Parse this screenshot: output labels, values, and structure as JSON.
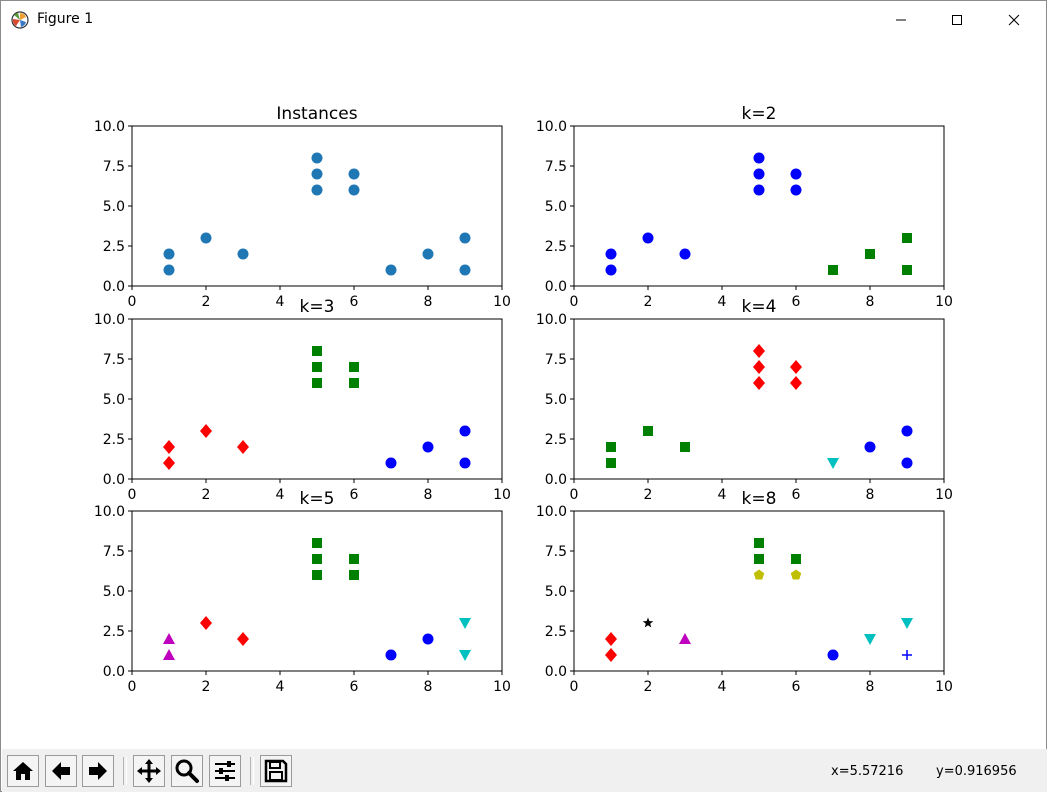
{
  "window": {
    "title": "Figure 1",
    "controls": [
      "minimize",
      "maximize",
      "close"
    ]
  },
  "toolbar": {
    "buttons": [
      {
        "name": "home-button",
        "icon": "home-icon"
      },
      {
        "name": "back-button",
        "icon": "arrow-left-icon"
      },
      {
        "name": "forward-button",
        "icon": "arrow-right-icon"
      },
      {
        "name": "pan-button",
        "icon": "move-icon"
      },
      {
        "name": "zoom-button",
        "icon": "magnifier-icon"
      },
      {
        "name": "configure-subplots-button",
        "icon": "sliders-icon"
      },
      {
        "name": "save-button",
        "icon": "floppy-disk-icon"
      }
    ],
    "coords": {
      "x": "x=5.57216",
      "y": "y=0.916956"
    }
  },
  "chart_data": [
    {
      "type": "scatter",
      "title": "Instances",
      "xlim": [
        0,
        10
      ],
      "ylim": [
        0,
        10
      ],
      "xticks": [
        "0",
        "2",
        "4",
        "6",
        "8",
        "10"
      ],
      "yticks": [
        "0.0",
        "2.5",
        "5.0",
        "7.5",
        "10.0"
      ],
      "series": [
        {
          "marker": "circle",
          "color": "#1f77b4",
          "points": [
            [
              1,
              2
            ],
            [
              1,
              1
            ],
            [
              2,
              3
            ],
            [
              3,
              2
            ],
            [
              5,
              8
            ],
            [
              5,
              7
            ],
            [
              5,
              6
            ],
            [
              6,
              7
            ],
            [
              6,
              6
            ],
            [
              7,
              1
            ],
            [
              8,
              2
            ],
            [
              9,
              1
            ],
            [
              9,
              3
            ]
          ]
        }
      ]
    },
    {
      "type": "scatter",
      "title": "k=2",
      "xlim": [
        0,
        10
      ],
      "ylim": [
        0,
        10
      ],
      "xticks": [
        "0",
        "2",
        "4",
        "6",
        "8",
        "10"
      ],
      "yticks": [
        "0.0",
        "2.5",
        "5.0",
        "7.5",
        "10.0"
      ],
      "series": [
        {
          "marker": "circle",
          "color": "#0000ff",
          "points": [
            [
              1,
              2
            ],
            [
              1,
              1
            ],
            [
              2,
              3
            ],
            [
              3,
              2
            ],
            [
              5,
              8
            ],
            [
              5,
              7
            ],
            [
              5,
              6
            ],
            [
              6,
              7
            ],
            [
              6,
              6
            ]
          ]
        },
        {
          "marker": "square",
          "color": "#008000",
          "points": [
            [
              7,
              1
            ],
            [
              8,
              2
            ],
            [
              9,
              1
            ],
            [
              9,
              3
            ]
          ]
        }
      ]
    },
    {
      "type": "scatter",
      "title": "k=3",
      "xlim": [
        0,
        10
      ],
      "ylim": [
        0,
        10
      ],
      "xticks": [
        "0",
        "2",
        "4",
        "6",
        "8",
        "10"
      ],
      "yticks": [
        "0.0",
        "2.5",
        "5.0",
        "7.5",
        "10.0"
      ],
      "series": [
        {
          "marker": "diamond",
          "color": "#ff0000",
          "points": [
            [
              1,
              2
            ],
            [
              1,
              1
            ],
            [
              2,
              3
            ],
            [
              3,
              2
            ]
          ]
        },
        {
          "marker": "square",
          "color": "#008000",
          "points": [
            [
              5,
              8
            ],
            [
              5,
              7
            ],
            [
              5,
              6
            ],
            [
              6,
              7
            ],
            [
              6,
              6
            ]
          ]
        },
        {
          "marker": "circle",
          "color": "#0000ff",
          "points": [
            [
              7,
              1
            ],
            [
              8,
              2
            ],
            [
              9,
              1
            ],
            [
              9,
              3
            ]
          ]
        }
      ]
    },
    {
      "type": "scatter",
      "title": "k=4",
      "xlim": [
        0,
        10
      ],
      "ylim": [
        0,
        10
      ],
      "xticks": [
        "0",
        "2",
        "4",
        "6",
        "8",
        "10"
      ],
      "yticks": [
        "0.0",
        "2.5",
        "5.0",
        "7.5",
        "10.0"
      ],
      "series": [
        {
          "marker": "square",
          "color": "#008000",
          "points": [
            [
              1,
              2
            ],
            [
              1,
              1
            ],
            [
              2,
              3
            ],
            [
              3,
              2
            ]
          ]
        },
        {
          "marker": "diamond",
          "color": "#ff0000",
          "points": [
            [
              5,
              8
            ],
            [
              5,
              7
            ],
            [
              5,
              6
            ],
            [
              6,
              7
            ],
            [
              6,
              6
            ]
          ]
        },
        {
          "marker": "triangle-down",
          "color": "#00bfbf",
          "points": [
            [
              7,
              1
            ]
          ]
        },
        {
          "marker": "circle",
          "color": "#0000ff",
          "points": [
            [
              8,
              2
            ],
            [
              9,
              1
            ],
            [
              9,
              3
            ]
          ]
        }
      ]
    },
    {
      "type": "scatter",
      "title": "k=5",
      "xlim": [
        0,
        10
      ],
      "ylim": [
        0,
        10
      ],
      "xticks": [
        "0",
        "2",
        "4",
        "6",
        "8",
        "10"
      ],
      "yticks": [
        "0.0",
        "2.5",
        "5.0",
        "7.5",
        "10.0"
      ],
      "series": [
        {
          "marker": "triangle-up",
          "color": "#bf00bf",
          "points": [
            [
              1,
              2
            ],
            [
              1,
              1
            ]
          ]
        },
        {
          "marker": "diamond",
          "color": "#ff0000",
          "points": [
            [
              2,
              3
            ],
            [
              3,
              2
            ]
          ]
        },
        {
          "marker": "square",
          "color": "#008000",
          "points": [
            [
              5,
              8
            ],
            [
              5,
              7
            ],
            [
              5,
              6
            ],
            [
              6,
              7
            ],
            [
              6,
              6
            ]
          ]
        },
        {
          "marker": "circle",
          "color": "#0000ff",
          "points": [
            [
              7,
              1
            ],
            [
              8,
              2
            ]
          ]
        },
        {
          "marker": "triangle-down",
          "color": "#00bfbf",
          "points": [
            [
              9,
              1
            ],
            [
              9,
              3
            ]
          ]
        }
      ]
    },
    {
      "type": "scatter",
      "title": "k=8",
      "xlim": [
        0,
        10
      ],
      "ylim": [
        0,
        10
      ],
      "xticks": [
        "0",
        "2",
        "4",
        "6",
        "8",
        "10"
      ],
      "yticks": [
        "0.0",
        "2.5",
        "5.0",
        "7.5",
        "10.0"
      ],
      "series": [
        {
          "marker": "diamond",
          "color": "#ff0000",
          "points": [
            [
              1,
              2
            ],
            [
              1,
              1
            ]
          ]
        },
        {
          "marker": "star",
          "color": "#000000",
          "points": [
            [
              2,
              3
            ]
          ]
        },
        {
          "marker": "triangle-up",
          "color": "#bf00bf",
          "points": [
            [
              3,
              2
            ]
          ]
        },
        {
          "marker": "square",
          "color": "#008000",
          "points": [
            [
              5,
              8
            ],
            [
              5,
              7
            ],
            [
              6,
              7
            ]
          ]
        },
        {
          "marker": "pentagon",
          "color": "#bfbf00",
          "points": [
            [
              5,
              6
            ],
            [
              6,
              6
            ]
          ]
        },
        {
          "marker": "circle",
          "color": "#0000ff",
          "points": [
            [
              7,
              1
            ]
          ]
        },
        {
          "marker": "triangle-down",
          "color": "#00bfbf",
          "points": [
            [
              8,
              2
            ],
            [
              9,
              3
            ]
          ]
        },
        {
          "marker": "plus",
          "color": "#0000ff",
          "points": [
            [
              9,
              1
            ]
          ]
        }
      ]
    }
  ]
}
